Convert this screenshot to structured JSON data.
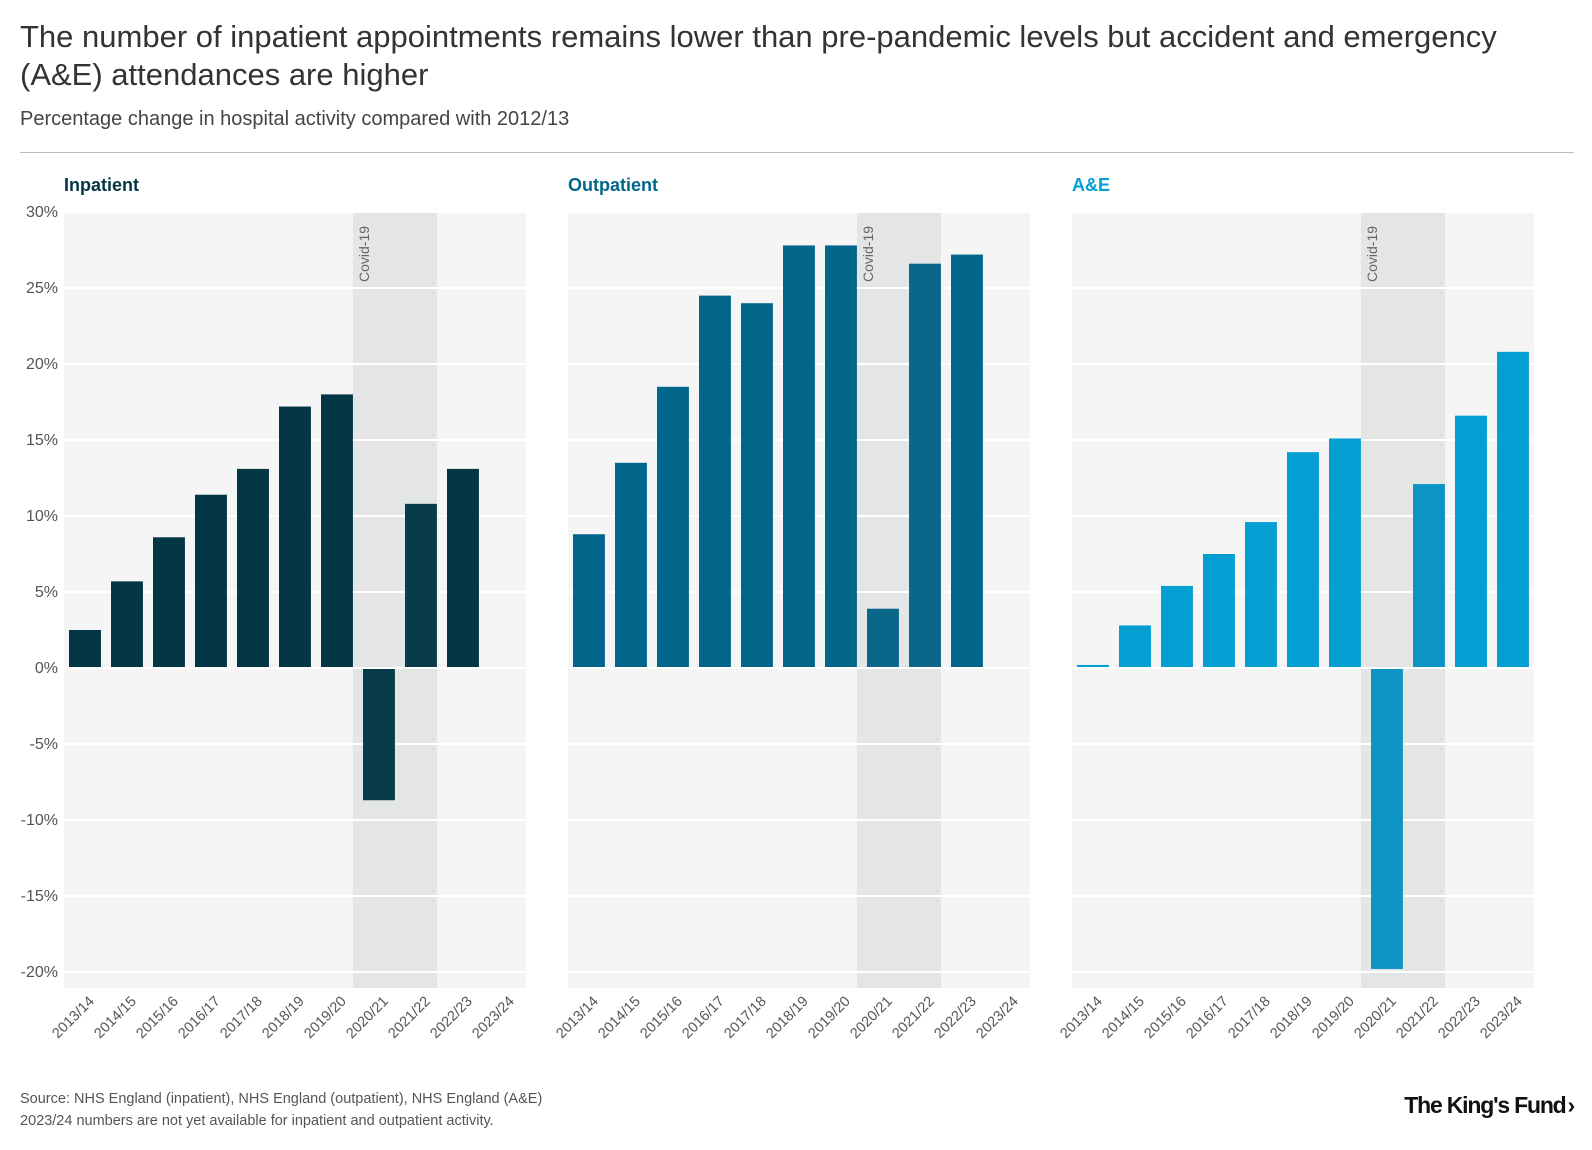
{
  "header": {
    "title": "The number of inpatient appointments remains lower than pre-pandemic levels but accident and emergency (A&E) attendances are higher",
    "subtitle": "Percentage change in hospital activity compared with 2012/13"
  },
  "footer": {
    "source": "Source: NHS England (inpatient), NHS England (outpatient), NHS England (A&E)",
    "note": "2023/24 numbers are not yet available for inpatient and outpatient activity.",
    "logo": "The King's Fund"
  },
  "colors": {
    "inpatient": "#023645",
    "inpatient_covid": "#093c4a",
    "outpatient": "#02668a",
    "outpatient_covid": "#0a678a",
    "ae": "#039fd3",
    "ae_covid": "#0c94c4",
    "panel_bg": "#f5f5f5",
    "covid_band": "#e4e6e6",
    "grid": "#ffffff"
  },
  "chart_data": [
    {
      "type": "bar",
      "title": "Inpatient",
      "title_color": "#023645",
      "categories": [
        "2013/14",
        "2014/15",
        "2015/16",
        "2016/17",
        "2017/18",
        "2018/19",
        "2019/20",
        "2020/21",
        "2021/22",
        "2022/23",
        "2023/24"
      ],
      "values": [
        2.5,
        5.7,
        8.6,
        11.4,
        13.1,
        17.2,
        18.0,
        -8.7,
        10.8,
        13.1,
        null
      ],
      "ylim": [
        -20,
        30
      ],
      "yticks": [
        30,
        25,
        20,
        15,
        10,
        5,
        0,
        -5,
        -10,
        -15,
        -20
      ],
      "ytick_labels": [
        "30%",
        "25%",
        "20%",
        "15%",
        "10%",
        "5%",
        "0%",
        "-5%",
        "-10%",
        "-15%",
        "-20%"
      ],
      "covid_label": "Covid-19",
      "covid_categories": [
        "2020/21",
        "2021/22"
      ]
    },
    {
      "type": "bar",
      "title": "Outpatient",
      "title_color": "#02668a",
      "categories": [
        "2013/14",
        "2014/15",
        "2015/16",
        "2016/17",
        "2017/18",
        "2018/19",
        "2019/20",
        "2020/21",
        "2021/22",
        "2022/23",
        "2023/24"
      ],
      "values": [
        8.8,
        13.5,
        18.5,
        24.5,
        24.0,
        27.8,
        27.8,
        3.9,
        26.6,
        27.2,
        null
      ],
      "ylim": [
        -20,
        30
      ],
      "covid_label": "Covid-19",
      "covid_categories": [
        "2020/21",
        "2021/22"
      ]
    },
    {
      "type": "bar",
      "title": "A&E",
      "title_color": "#039fd3",
      "categories": [
        "2013/14",
        "2014/15",
        "2015/16",
        "2016/17",
        "2017/18",
        "2018/19",
        "2019/20",
        "2020/21",
        "2021/22",
        "2022/23",
        "2023/24"
      ],
      "values": [
        0.2,
        2.8,
        5.4,
        7.5,
        9.6,
        14.2,
        15.1,
        -19.8,
        12.1,
        16.6,
        20.8
      ],
      "ylim": [
        -20,
        30
      ],
      "covid_label": "Covid-19",
      "covid_categories": [
        "2020/21",
        "2021/22"
      ]
    }
  ]
}
